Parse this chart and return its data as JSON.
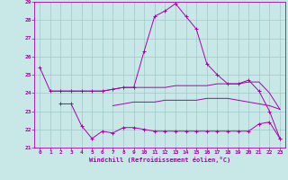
{
  "xlabel": "Windchill (Refroidissement éolien,°C)",
  "background_color": "#c8e8e8",
  "grid_color": "#a0c8c8",
  "line_color": "#aa00aa",
  "x_values": [
    0,
    1,
    2,
    3,
    4,
    5,
    6,
    7,
    8,
    9,
    10,
    11,
    12,
    13,
    14,
    15,
    16,
    17,
    18,
    19,
    20,
    21,
    22,
    23
  ],
  "series1": [
    25.4,
    24.1,
    24.1,
    24.1,
    24.1,
    24.1,
    24.1,
    24.2,
    24.3,
    24.3,
    26.3,
    28.2,
    28.5,
    28.9,
    28.2,
    27.5,
    25.6,
    25.0,
    24.5,
    24.5,
    24.7,
    24.1,
    23.0,
    21.5
  ],
  "series2": [
    null,
    null,
    23.4,
    23.4,
    22.2,
    21.5,
    21.9,
    21.8,
    22.1,
    22.1,
    22.0,
    21.9,
    21.9,
    21.9,
    21.9,
    21.9,
    21.9,
    21.9,
    21.9,
    21.9,
    21.9,
    22.3,
    22.4,
    21.5
  ],
  "series3": [
    null,
    null,
    null,
    null,
    null,
    null,
    null,
    23.3,
    23.4,
    23.5,
    23.5,
    23.5,
    23.6,
    23.6,
    23.6,
    23.6,
    23.7,
    23.7,
    23.7,
    23.6,
    23.5,
    23.4,
    23.3,
    23.1
  ],
  "series4": [
    null,
    24.1,
    24.1,
    24.1,
    24.1,
    24.1,
    24.1,
    24.2,
    24.3,
    24.3,
    24.3,
    24.3,
    24.3,
    24.4,
    24.4,
    24.4,
    24.4,
    24.5,
    24.5,
    24.5,
    24.6,
    24.6,
    24.0,
    23.1
  ],
  "ylim": [
    21,
    29
  ],
  "xlim": [
    -0.5,
    23.5
  ],
  "yticks": [
    21,
    22,
    23,
    24,
    25,
    26,
    27,
    28,
    29
  ],
  "xticks": [
    0,
    1,
    2,
    3,
    4,
    5,
    6,
    7,
    8,
    9,
    10,
    11,
    12,
    13,
    14,
    15,
    16,
    17,
    18,
    19,
    20,
    21,
    22,
    23
  ]
}
